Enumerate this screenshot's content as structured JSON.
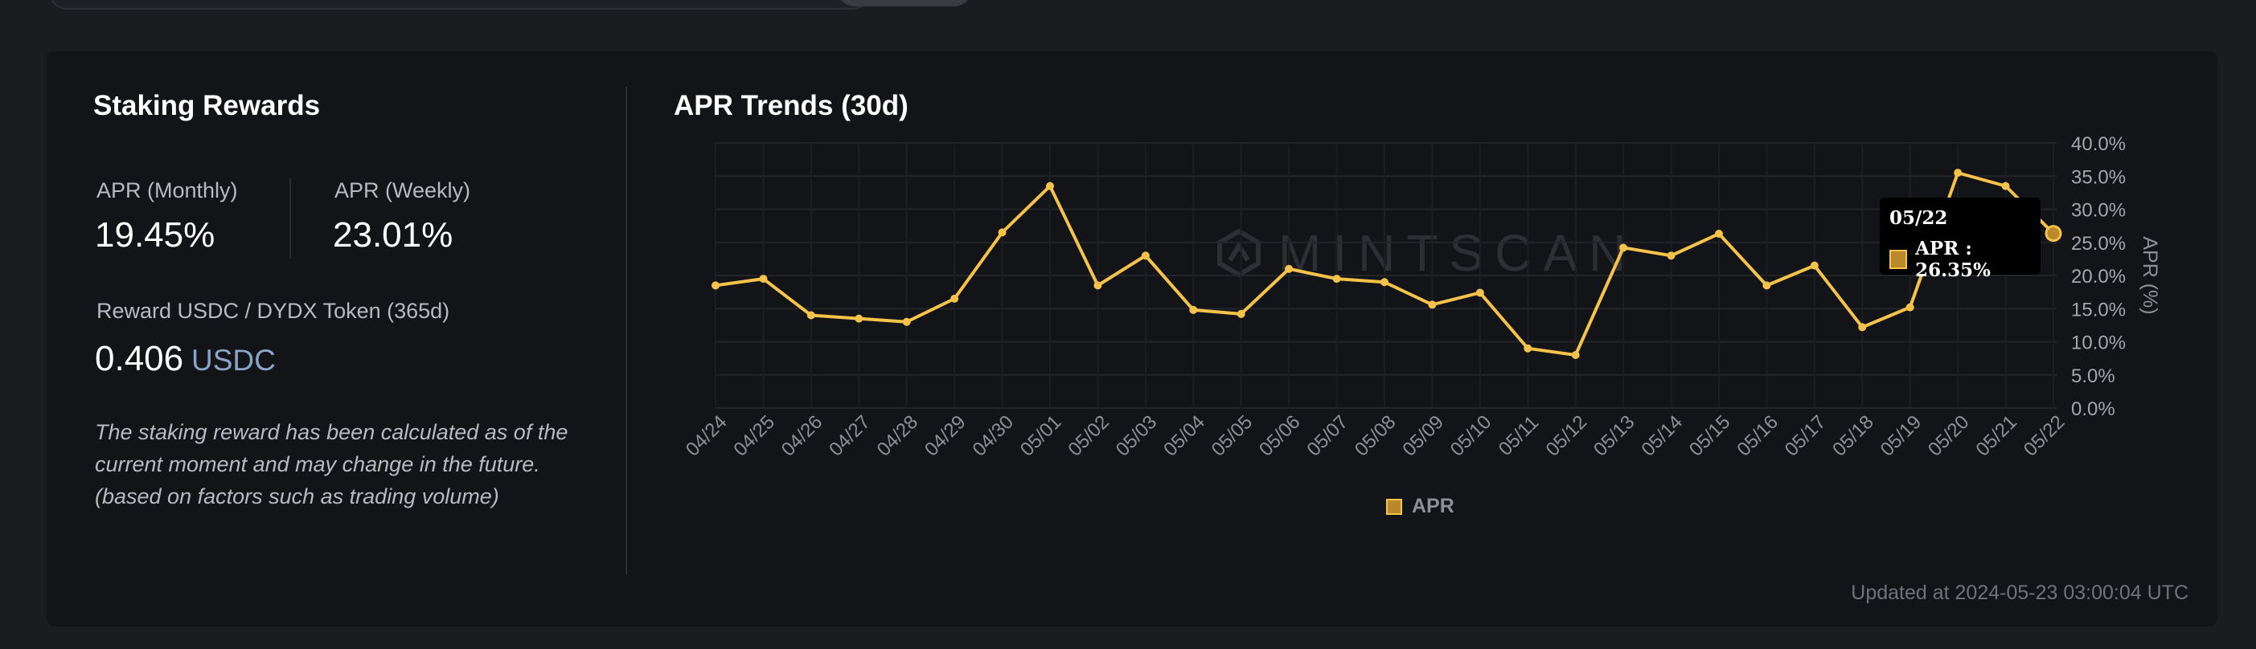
{
  "staking": {
    "title": "Staking Rewards",
    "apr_monthly_label": "APR (Monthly)",
    "apr_monthly_value": "19.45%",
    "apr_weekly_label": "APR (Weekly)",
    "apr_weekly_value": "23.01%",
    "reward_label": "Reward USDC / DYDX Token (365d)",
    "reward_value": "0.406",
    "reward_unit": "USDC",
    "note": "The staking reward has been calculated as of the current moment and may change in the future. (based on factors such as trading volume)"
  },
  "chart": {
    "title": "APR Trends (30d)",
    "watermark": "MINTSCAN",
    "tooltip": {
      "date": "05/22",
      "text": "APR : 26.35%"
    }
  },
  "updated": "Updated at 2024-05-23 03:00:04 UTC",
  "colors": {
    "line": "#f5c24a",
    "background": "#131418",
    "grid": "#24262c"
  },
  "chart_data": {
    "type": "line",
    "title": "APR Trends (30d)",
    "xlabel": "",
    "ylabel": "APR (%)",
    "ylim": [
      0,
      40
    ],
    "yticks": [
      "0.0%",
      "5.0%",
      "10.0%",
      "15.0%",
      "20.0%",
      "25.0%",
      "30.0%",
      "35.0%",
      "40.0%"
    ],
    "categories": [
      "04/24",
      "04/25",
      "04/26",
      "04/27",
      "04/28",
      "04/29",
      "04/30",
      "05/01",
      "05/02",
      "05/03",
      "05/04",
      "05/05",
      "05/06",
      "05/07",
      "05/08",
      "05/09",
      "05/10",
      "05/11",
      "05/12",
      "05/13",
      "05/14",
      "05/15",
      "05/16",
      "05/17",
      "05/18",
      "05/19",
      "05/20",
      "05/21",
      "05/22"
    ],
    "series": [
      {
        "name": "APR",
        "values": [
          18.5,
          19.5,
          14.0,
          13.5,
          13.0,
          16.5,
          26.5,
          33.5,
          18.5,
          23.0,
          14.8,
          14.2,
          21.0,
          19.5,
          19.0,
          15.6,
          17.4,
          9.0,
          8.0,
          24.2,
          23.0,
          26.3,
          18.5,
          21.5,
          12.2,
          15.2,
          35.5,
          33.5,
          26.35
        ]
      }
    ],
    "legend": "bottom-center",
    "grid": true
  }
}
